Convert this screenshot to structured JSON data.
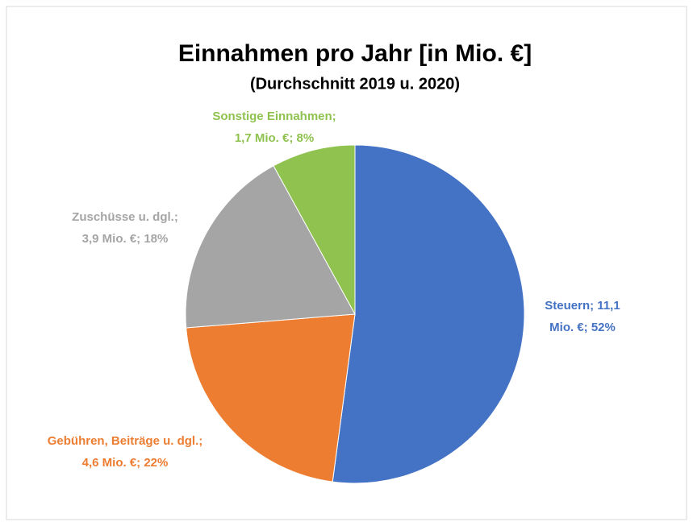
{
  "chart_data": {
    "type": "pie",
    "title": "Einnahmen pro Jahr [in Mio. €]",
    "subtitle": "(Durchschnitt 2019 u. 2020)",
    "categories": [
      "Steuern",
      "Gebühren, Beiträge u. dgl.",
      "Zuschüsse u. dgl.",
      "Sonstige Einnahmen"
    ],
    "values": [
      11.1,
      4.6,
      3.9,
      1.7
    ],
    "value_labels": [
      [
        "Steuern; 11,1",
        "Mio. €; 52%"
      ],
      [
        "Gebühren, Beiträge u. dgl.;",
        "4,6 Mio. €; 22%"
      ],
      [
        "Zuschüsse u. dgl.;",
        "3,9 Mio. €; 18%"
      ],
      [
        "Sonstige Einnahmen;",
        "1,7 Mio. €; 8%"
      ]
    ],
    "colors": [
      "#4472c4",
      "#ed7d31",
      "#a5a5a5",
      "#8fc24f"
    ]
  }
}
